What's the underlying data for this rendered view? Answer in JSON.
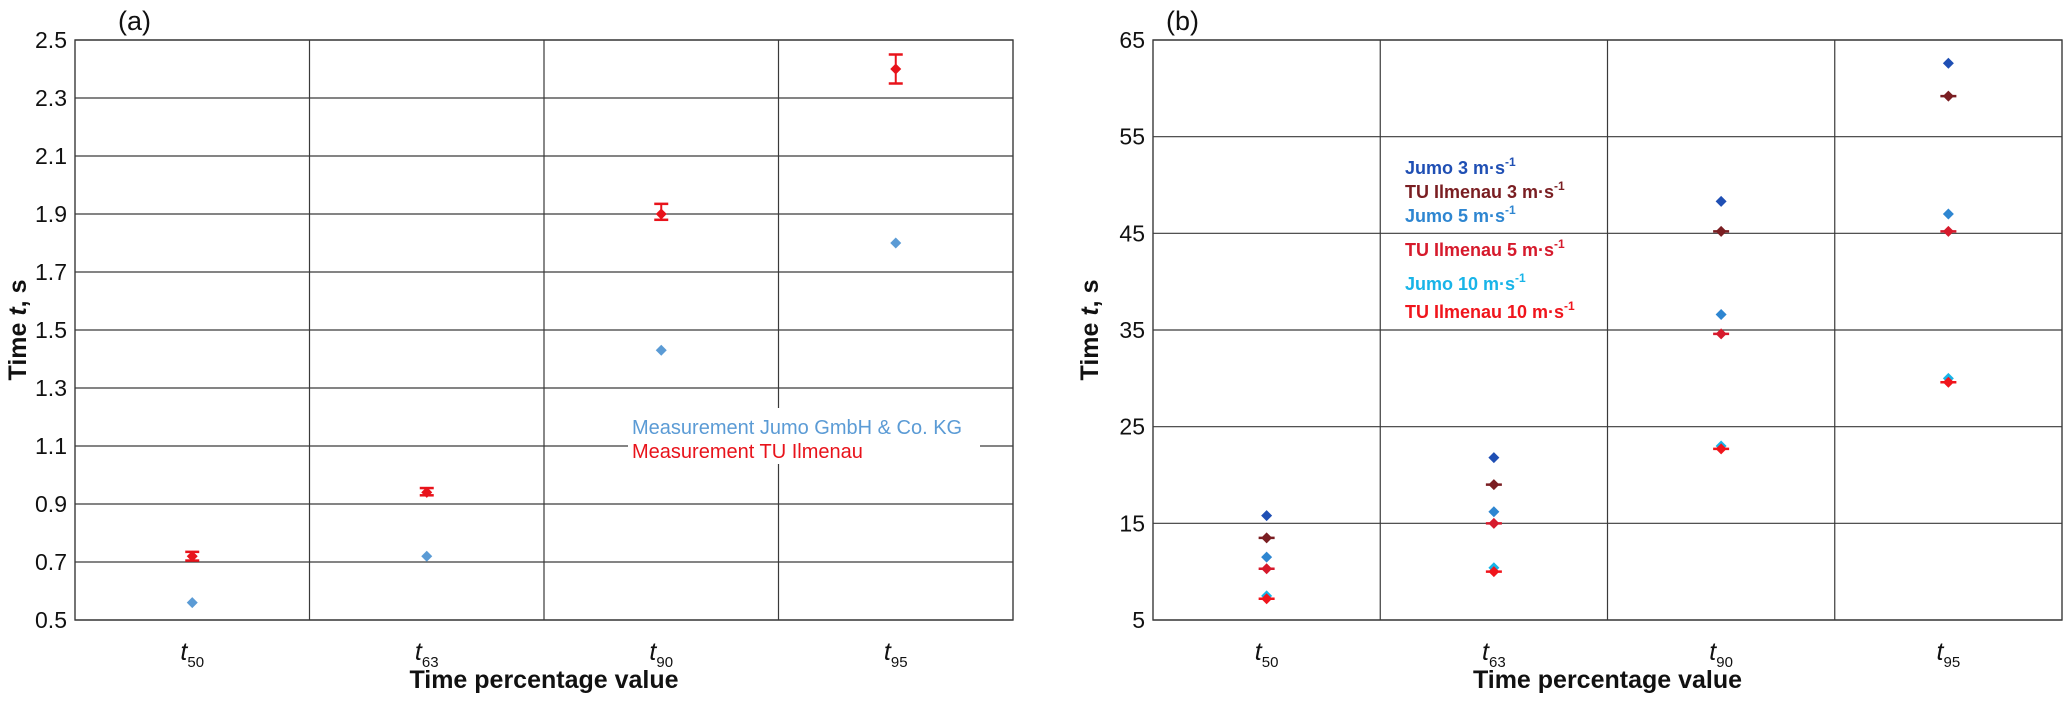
{
  "chart_data": [
    {
      "type": "scatter",
      "panel_label": "(a)",
      "xlabel": "Time percentage value",
      "ylabel_prefix": "Time ",
      "ylabel_var": "t",
      "ylabel_suffix": ", s",
      "categories": [
        {
          "base": "t",
          "sub": "50"
        },
        {
          "base": "t",
          "sub": "63"
        },
        {
          "base": "t",
          "sub": "90"
        },
        {
          "base": "t",
          "sub": "95"
        }
      ],
      "ylim": [
        0.5,
        2.5
      ],
      "yticks": [
        "0.5",
        "0.7",
        "0.9",
        "1.1",
        "1.3",
        "1.5",
        "1.7",
        "1.9",
        "2.1",
        "2.3",
        "2.5"
      ],
      "grid": true,
      "legend_position": "middle-right",
      "series": [
        {
          "name": "Measurement Jumo GmbH & Co. KG",
          "color": "#5b9bd5",
          "values": [
            0.56,
            0.72,
            1.43,
            1.8
          ]
        },
        {
          "name": "Measurement TU Ilmenau",
          "color": "#e8131b",
          "values": [
            0.72,
            0.94,
            1.9,
            2.4
          ],
          "error_low": [
            0.705,
            0.93,
            1.88,
            2.35
          ],
          "error_high": [
            0.735,
            0.955,
            1.935,
            2.45
          ]
        }
      ]
    },
    {
      "type": "scatter",
      "panel_label": "(b)",
      "xlabel": "Time percentage value",
      "ylabel_prefix": "Time ",
      "ylabel_var": "t",
      "ylabel_suffix": ", s",
      "categories": [
        {
          "base": "t",
          "sub": "50"
        },
        {
          "base": "t",
          "sub": "63"
        },
        {
          "base": "t",
          "sub": "90"
        },
        {
          "base": "t",
          "sub": "95"
        }
      ],
      "ylim": [
        5,
        65
      ],
      "yticks": [
        "5",
        "15",
        "25",
        "35",
        "45",
        "55",
        "65"
      ],
      "grid": true,
      "legend_position": "upper-left",
      "legend_unit": "m·s",
      "legend_unit_exp": "-1",
      "series": [
        {
          "name_prefix": "Jumo 3 ",
          "color": "#1f4fb4",
          "values": [
            15.8,
            21.8,
            48.3,
            62.6
          ]
        },
        {
          "name_prefix": "TU Ilmenau 3 ",
          "color": "#7a1e22",
          "values": [
            13.5,
            19.0,
            45.2,
            59.2
          ]
        },
        {
          "name_prefix": "Jumo 5 ",
          "color": "#2e86d1",
          "values": [
            11.5,
            16.2,
            36.6,
            47.0
          ]
        },
        {
          "name_prefix": "TU Ilmenau 5 ",
          "color": "#d61a2c",
          "values": [
            10.3,
            15.0,
            34.6,
            45.2
          ]
        },
        {
          "name_prefix": "Jumo 10 ",
          "color": "#18b4e8",
          "values": [
            7.5,
            10.4,
            23.0,
            30.0
          ]
        },
        {
          "name_prefix": "TU Ilmenau 10 ",
          "color": "#f0151c",
          "values": [
            7.2,
            10.0,
            22.7,
            29.6
          ]
        }
      ]
    }
  ]
}
